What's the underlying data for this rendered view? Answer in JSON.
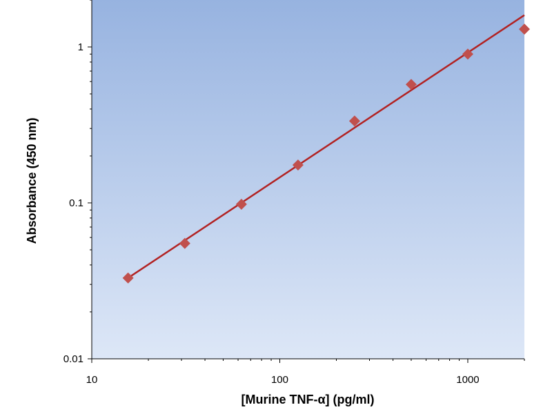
{
  "chart_data": {
    "type": "scatter",
    "title": "",
    "xlabel": "[Murine TNF-α] (pg/ml)",
    "ylabel": "Absorbance (450 nm)",
    "x_scale": "log",
    "y_scale": "log",
    "xlim": [
      10,
      2000
    ],
    "ylim": [
      0.01,
      2
    ],
    "x_ticks": [
      {
        "value": 10,
        "label": "10"
      },
      {
        "value": 100,
        "label": "100"
      },
      {
        "value": 1000,
        "label": "1000"
      }
    ],
    "y_ticks": [
      {
        "value": 0.01,
        "label": "0.01"
      },
      {
        "value": 0.1,
        "label": "0.1"
      },
      {
        "value": 1,
        "label": "1"
      }
    ],
    "grid": false,
    "legend": "none",
    "series": [
      {
        "marker": "diamond",
        "color": "#c0504d",
        "x": [
          15.6,
          31.25,
          62.5,
          125,
          250,
          500,
          1000,
          2000
        ],
        "y": [
          0.033,
          0.055,
          0.098,
          0.175,
          0.335,
          0.575,
          0.9,
          1.3
        ]
      }
    ],
    "trendline": {
      "type": "power",
      "color": "#b22222",
      "x": [
        15.6,
        2000
      ],
      "y": [
        0.033,
        1.6
      ]
    },
    "plot_background": {
      "top": "#97b3e0",
      "bottom": "#dde7f7"
    }
  }
}
